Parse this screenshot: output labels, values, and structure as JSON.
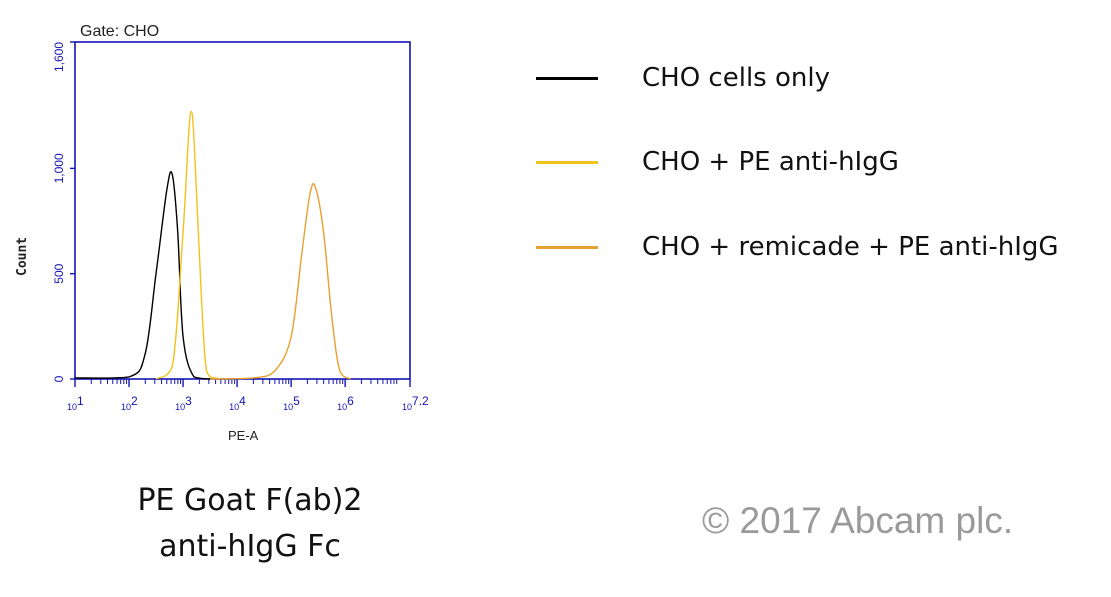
{
  "chart_data": {
    "type": "line",
    "title": "Gate:  CHO",
    "xlabel": "PE-A",
    "ylabel": "Count",
    "x_scale": "log",
    "xlim": [
      1,
      7.2
    ],
    "ylim": [
      0,
      1600
    ],
    "x_ticks": [
      {
        "base": "10",
        "exp": "1",
        "pos": 1
      },
      {
        "base": "10",
        "exp": "2",
        "pos": 2
      },
      {
        "base": "10",
        "exp": "3",
        "pos": 3
      },
      {
        "base": "10",
        "exp": "4",
        "pos": 4
      },
      {
        "base": "10",
        "exp": "5",
        "pos": 5
      },
      {
        "base": "10",
        "exp": "6",
        "pos": 6
      },
      {
        "base": "10",
        "exp": "7.2",
        "pos": 7.2
      }
    ],
    "y_ticks": [
      {
        "label": "0",
        "value": 0
      },
      {
        "label": "500",
        "value": 500
      },
      {
        "label": "1,000",
        "value": 1000
      },
      {
        "label": "1,600",
        "value": 1600
      }
    ],
    "series": [
      {
        "name": "CHO cells only",
        "color": "#000000",
        "x": [
          1.0,
          2.0,
          2.3,
          2.5,
          2.7,
          2.8,
          2.9,
          3.0,
          3.2,
          3.5
        ],
        "y": [
          5,
          10,
          120,
          500,
          900,
          970,
          700,
          200,
          10,
          0
        ]
      },
      {
        "name": "CHO + PE anti-hIgG",
        "color": "#f2c21b",
        "x": [
          2.5,
          2.8,
          3.0,
          3.1,
          3.15,
          3.2,
          3.3,
          3.4,
          3.5,
          3.8
        ],
        "y": [
          0,
          60,
          700,
          1150,
          1270,
          1150,
          600,
          120,
          10,
          0
        ]
      },
      {
        "name": "CHO + remicade + PE anti-hIgG",
        "color": "#e8a030",
        "x": [
          3.5,
          4.3,
          4.7,
          5.0,
          5.2,
          5.35,
          5.45,
          5.6,
          5.75,
          5.9,
          6.1
        ],
        "y": [
          0,
          5,
          40,
          200,
          600,
          880,
          910,
          700,
          300,
          40,
          0
        ]
      }
    ],
    "legend_position": "right"
  },
  "caption": {
    "line1": "PE Goat F(ab)2",
    "line2": "anti-hIgG Fc"
  },
  "copyright": "© 2017 Abcam plc."
}
